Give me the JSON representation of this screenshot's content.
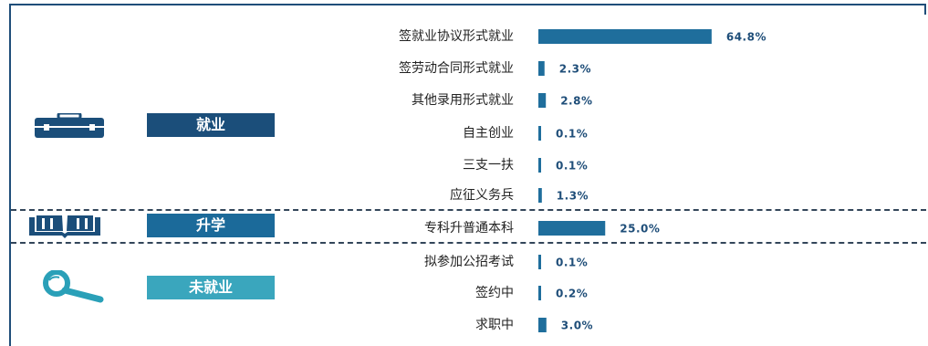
{
  "groups": [
    {
      "label": "就业",
      "color": "#1b4e7a"
    },
    {
      "label": "升学",
      "color": "#1b6a9a"
    },
    {
      "label": "未就业",
      "color": "#3aa6bd"
    }
  ],
  "chart_data": {
    "type": "bar",
    "orientation": "horizontal",
    "categories": [
      "签就业协议形式就业",
      "签劳动合同形式就业",
      "其他录用形式就业",
      "自主创业",
      "三支一扶",
      "应征义务兵",
      "专科升普通本科",
      "拟参加公招考试",
      "签约中",
      "求职中"
    ],
    "values": [
      64.8,
      2.3,
      2.8,
      0.1,
      0.1,
      1.3,
      25.0,
      0.1,
      0.2,
      3.0
    ],
    "value_labels": [
      "64.8%",
      "2.3%",
      "2.8%",
      "0.1%",
      "0.1%",
      "1.3%",
      "25.0%",
      "0.1%",
      "0.2%",
      "3.0%"
    ],
    "category_groups": [
      "就业",
      "就业",
      "就业",
      "就业",
      "就业",
      "就业",
      "升学",
      "未就业",
      "未就业",
      "未就业"
    ],
    "unit": "%",
    "xlim": [
      0,
      100
    ],
    "bar_color": "#1f6e9c",
    "grid": false,
    "legend": "none"
  }
}
